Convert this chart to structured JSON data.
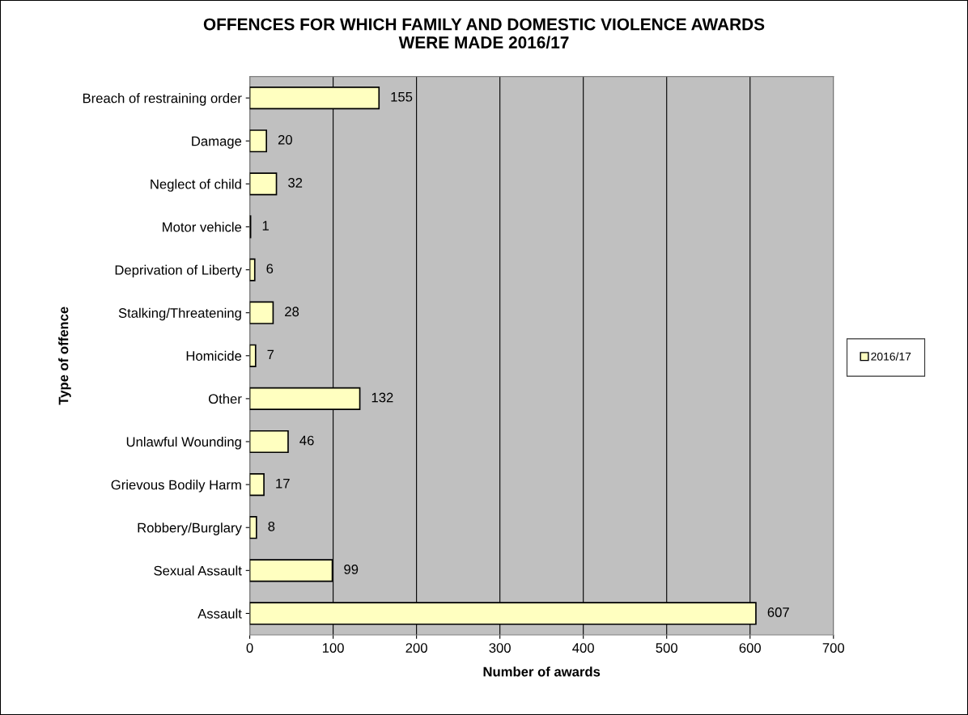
{
  "chart_data": {
    "type": "bar",
    "orientation": "horizontal",
    "title": "OFFENCES FOR WHICH FAMILY AND DOMESTIC VIOLENCE AWARDS\nWERE MADE 2016/17",
    "xlabel": "Number of awards",
    "ylabel": "Type of offence",
    "categories": [
      "Breach of restraining order",
      "Damage",
      "Neglect of child",
      "Motor vehicle",
      "Deprivation of Liberty",
      "Stalking/Threatening",
      "Homicide",
      "Other",
      "Unlawful Wounding",
      "Grievous Bodily Harm",
      "Robbery/Burglary",
      "Sexual Assault",
      "Assault"
    ],
    "series": [
      {
        "name": "2016/17",
        "color": "#ffffc0",
        "values": [
          155,
          20,
          32,
          1,
          6,
          28,
          7,
          132,
          46,
          17,
          8,
          99,
          607
        ]
      }
    ],
    "xlim": [
      0,
      700
    ],
    "xticks": [
      0,
      100,
      200,
      300,
      400,
      500,
      600,
      700
    ],
    "grid": "x",
    "legend": "right",
    "data_labels": true
  }
}
